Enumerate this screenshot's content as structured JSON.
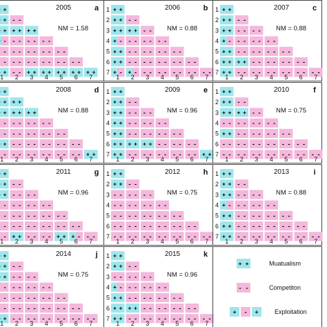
{
  "chart_data": {
    "type": "heatmap",
    "row_labels": [
      "1",
      "2",
      "3",
      "4",
      "5",
      "6",
      "7"
    ],
    "col_labels": [
      "1",
      "2",
      "3",
      "4",
      "5",
      "6",
      "7"
    ],
    "colors": {
      "mutualism": "#9fe6ec",
      "competition": "#f4b8dc",
      "exploitation": "#9fe6ec"
    },
    "panels": [
      {
        "year": "2005",
        "letter": "a",
        "nm": "NM = 1.58",
        "rows": [
          [
            "M"
          ],
          [
            "M",
            "C"
          ],
          [
            "M",
            "M",
            "M"
          ],
          [
            "E",
            "C",
            "C",
            "C"
          ],
          [
            "C",
            "C",
            "C",
            "C",
            "C"
          ],
          [
            "C",
            "C",
            "C",
            "C",
            "C",
            "C"
          ],
          [
            "M",
            "C",
            "M",
            "M",
            "M",
            "M",
            "M"
          ]
        ]
      },
      {
        "year": "2006",
        "letter": "b",
        "nm": "NM = 0.88",
        "rows": [
          [
            "M"
          ],
          [
            "M",
            "C"
          ],
          [
            "M",
            "M",
            "C"
          ],
          [
            "E",
            "C",
            "C",
            "C"
          ],
          [
            "M",
            "C",
            "C",
            "C",
            "C"
          ],
          [
            "M",
            "C",
            "C",
            "C",
            "C",
            "C"
          ],
          [
            "E",
            "E",
            "C",
            "C",
            "C",
            "C",
            "C"
          ]
        ]
      },
      {
        "year": "2007",
        "letter": "c",
        "nm": "NM = 0.88",
        "rows": [
          [
            "M"
          ],
          [
            "M",
            "C"
          ],
          [
            "M",
            "C",
            "C"
          ],
          [
            "E",
            "C",
            "C",
            "C"
          ],
          [
            "M",
            "C",
            "C",
            "C",
            "C"
          ],
          [
            "M",
            "M",
            "C",
            "C",
            "C",
            "C"
          ],
          [
            "M",
            "C",
            "C",
            "C",
            "C",
            "C",
            "C"
          ]
        ]
      },
      {
        "year": "2008",
        "letter": "d",
        "nm": "NM = 0.88",
        "rows": [
          [
            "M"
          ],
          [
            "M",
            "M"
          ],
          [
            "M",
            "M",
            "M"
          ],
          [
            "C",
            "C",
            "C",
            "C"
          ],
          [
            "C",
            "C",
            "C",
            "C",
            "C"
          ],
          [
            "M",
            "C",
            "C",
            "C",
            "C",
            "C"
          ],
          [
            "C",
            "C",
            "C",
            "C",
            "C",
            "C",
            "M"
          ]
        ]
      },
      {
        "year": "2009",
        "letter": "e",
        "nm": "NM = 0.96",
        "rows": [
          [
            "M"
          ],
          [
            "M",
            "C"
          ],
          [
            "M",
            "C",
            "C"
          ],
          [
            "M",
            "C",
            "C",
            "C"
          ],
          [
            "M",
            "C",
            "C",
            "C",
            "C"
          ],
          [
            "M",
            "M",
            "M",
            "C",
            "C",
            "C"
          ],
          [
            "M",
            "C",
            "C",
            "C",
            "C",
            "C",
            "M"
          ]
        ]
      },
      {
        "year": "2010",
        "letter": "f",
        "nm": "NM = 0.75",
        "rows": [
          [
            "M"
          ],
          [
            "M",
            "C"
          ],
          [
            "M",
            "M",
            "C"
          ],
          [
            "C",
            "C",
            "C",
            "C"
          ],
          [
            "M",
            "C",
            "C",
            "C",
            "C"
          ],
          [
            "C",
            "C",
            "C",
            "C",
            "C",
            "C"
          ],
          [
            "C",
            "C",
            "C",
            "C",
            "C",
            "C",
            "C"
          ]
        ]
      },
      {
        "year": "2011",
        "letter": "g",
        "nm": "NM = 0.96",
        "rows": [
          [
            "M"
          ],
          [
            "M",
            "C"
          ],
          [
            "M",
            "C",
            "C"
          ],
          [
            "C",
            "C",
            "C",
            "C"
          ],
          [
            "C",
            "C",
            "C",
            "C",
            "C"
          ],
          [
            "C",
            "C",
            "C",
            "C",
            "C",
            "C"
          ],
          [
            "C",
            "M",
            "C",
            "C",
            "M",
            "E",
            "C"
          ]
        ]
      },
      {
        "year": "2012",
        "letter": "h",
        "nm": "NM = 0.75",
        "rows": [
          [
            "M"
          ],
          [
            "M",
            "C"
          ],
          [
            "C",
            "C",
            "C"
          ],
          [
            "C",
            "C",
            "C",
            "C"
          ],
          [
            "C",
            "C",
            "C",
            "C",
            "C"
          ],
          [
            "C",
            "C",
            "C",
            "C",
            "C",
            "C"
          ],
          [
            "C",
            "C",
            "C",
            "C",
            "C",
            "C",
            "C"
          ]
        ]
      },
      {
        "year": "2013",
        "letter": "i",
        "nm": "NM = 0.88",
        "rows": [
          [
            "M"
          ],
          [
            "M",
            "C"
          ],
          [
            "M",
            "C",
            "C"
          ],
          [
            "E",
            "C",
            "C",
            "C"
          ],
          [
            "M",
            "C",
            "C",
            "C",
            "C"
          ],
          [
            "M",
            "C",
            "C",
            "C",
            "C",
            "C"
          ],
          [
            "M",
            "C",
            "C",
            "C",
            "C",
            "C",
            "C"
          ]
        ]
      },
      {
        "year": "2014",
        "letter": "j",
        "nm": "NM = 0.75",
        "rows": [
          [
            "M"
          ],
          [
            "M",
            "C"
          ],
          [
            "M",
            "C",
            "C"
          ],
          [
            "C",
            "C",
            "C",
            "C"
          ],
          [
            "C",
            "C",
            "C",
            "C",
            "C"
          ],
          [
            "C",
            "C",
            "C",
            "C",
            "C",
            "C"
          ],
          [
            "M",
            "C",
            "C",
            "C",
            "C",
            "C",
            "C"
          ]
        ]
      },
      {
        "year": "2015",
        "letter": "k",
        "nm": "NM = 0.96",
        "rows": [
          [
            "M"
          ],
          [
            "M",
            "C"
          ],
          [
            "C",
            "C",
            "C"
          ],
          [
            "E",
            "C",
            "C",
            "C"
          ],
          [
            "M",
            "C",
            "C",
            "C",
            "C"
          ],
          [
            "M",
            "M",
            "C",
            "C",
            "C",
            "C"
          ],
          [
            "M",
            "C",
            "C",
            "C",
            "C",
            "C",
            "C"
          ]
        ]
      }
    ],
    "legend": [
      {
        "key": "M",
        "label": "Muatualism"
      },
      {
        "key": "C",
        "label": "Competiton"
      },
      {
        "key": "E",
        "label": "Exploitation"
      }
    ]
  }
}
